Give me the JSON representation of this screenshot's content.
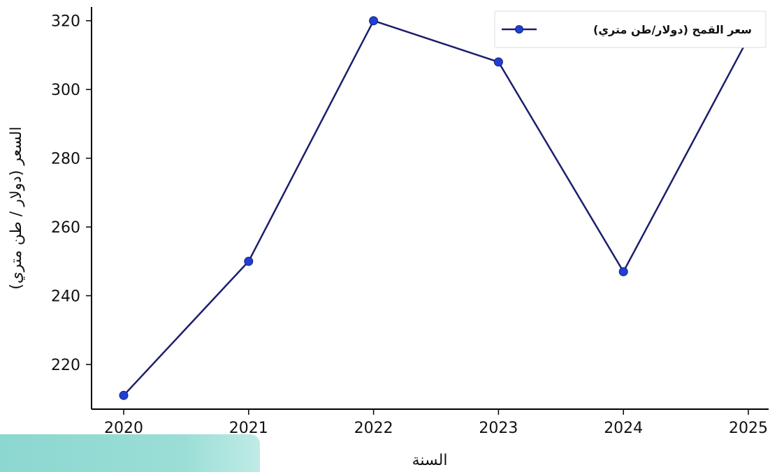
{
  "chart_data": {
    "type": "line",
    "xlabel": "السنة",
    "ylabel": "السعر (دولار / طن متري)",
    "x": [
      "2020",
      "2021",
      "2022",
      "2023",
      "2024",
      "2025"
    ],
    "series": [
      {
        "name": "سعر القمح (دولار/طن متري)",
        "values": [
          211,
          250,
          320,
          308,
          247,
          315
        ]
      }
    ],
    "yticks": [
      220,
      240,
      260,
      280,
      300,
      320
    ],
    "ylim": [
      207,
      324
    ],
    "grid": false,
    "legend": "top-right",
    "colors": {
      "line": "#1b1f6b",
      "marker": "#1f3fd6"
    }
  }
}
